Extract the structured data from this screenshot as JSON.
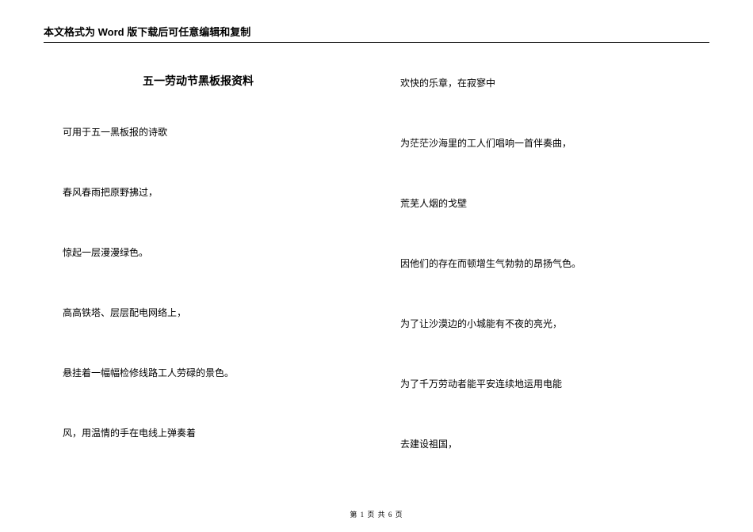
{
  "header_notice": "本文格式为 Word 版下载后可任意编辑和复制",
  "doc_title": "五一劳动节黑板报资料",
  "left_column": {
    "p1": "可用于五一黑板报的诗歌",
    "p2": "春风春雨把原野拂过，",
    "p3": "惊起一层漫漫绿色。",
    "p4": "高高铁塔、层层配电网络上，",
    "p5": "悬挂着一幅幅检修线路工人劳碌的景色。",
    "p6": "风，用温情的手在电线上弹奏着"
  },
  "right_column": {
    "p1": "欢快的乐章，在寂寥中",
    "p2": "为茫茫沙海里的工人们唱响一首伴奏曲，",
    "p3": "荒芜人烟的戈壁",
    "p4": "因他们的存在而顿增生气勃勃的昂扬气色。",
    "p5": "为了让沙漠边的小城能有不夜的亮光，",
    "p6": "为了千万劳动者能平安连续地运用电能",
    "p7": "去建设祖国，"
  },
  "footer": {
    "prefix": "第",
    "page_current": "1",
    "mid": "页 共",
    "page_total": "6",
    "suffix": "页"
  }
}
